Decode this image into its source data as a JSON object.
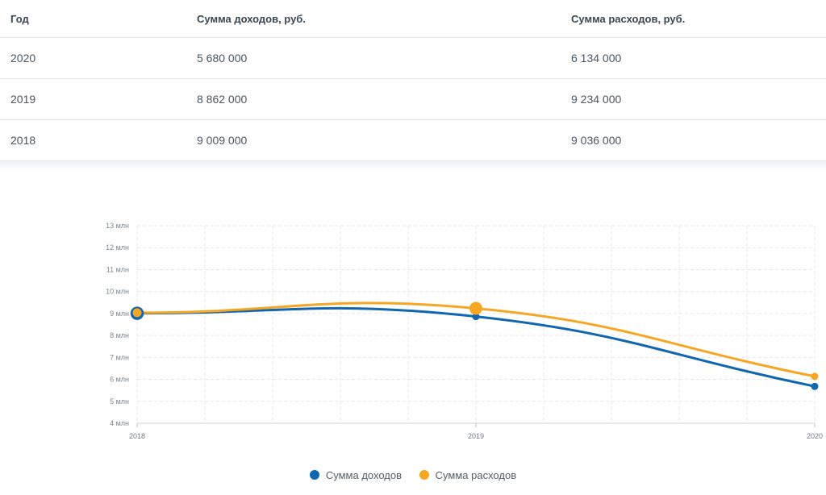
{
  "table": {
    "headers": [
      "Год",
      "Сумма доходов, руб.",
      "Сумма расходов, руб."
    ],
    "rows": [
      [
        "2020",
        "5 680 000",
        "6 134 000"
      ],
      [
        "2019",
        "8 862 000",
        "9 234 000"
      ],
      [
        "2018",
        "9 009 000",
        "9 036 000"
      ]
    ]
  },
  "chart_data": {
    "type": "line",
    "x": [
      "2018",
      "2019",
      "2020"
    ],
    "series": [
      {
        "name": "Сумма доходов",
        "values": [
          9009000,
          8862000,
          5680000
        ],
        "color": "#1166b0"
      },
      {
        "name": "Сумма расходов",
        "values": [
          9036000,
          9234000,
          6134000
        ],
        "color": "#f5a623"
      }
    ],
    "ylim": [
      4000000,
      13000000
    ],
    "yticks": [
      {
        "value": 4000000,
        "label": "4 млн"
      },
      {
        "value": 5000000,
        "label": "5 млн"
      },
      {
        "value": 6000000,
        "label": "6 млн"
      },
      {
        "value": 7000000,
        "label": "7 млн"
      },
      {
        "value": 8000000,
        "label": "8 млн"
      },
      {
        "value": 9000000,
        "label": "9 млн"
      },
      {
        "value": 10000000,
        "label": "10 млн"
      },
      {
        "value": 11000000,
        "label": "11 млн"
      },
      {
        "value": 12000000,
        "label": "12 млн"
      },
      {
        "value": 13000000,
        "label": "13 млн"
      }
    ],
    "grid": true,
    "legend_position": "bottom"
  }
}
